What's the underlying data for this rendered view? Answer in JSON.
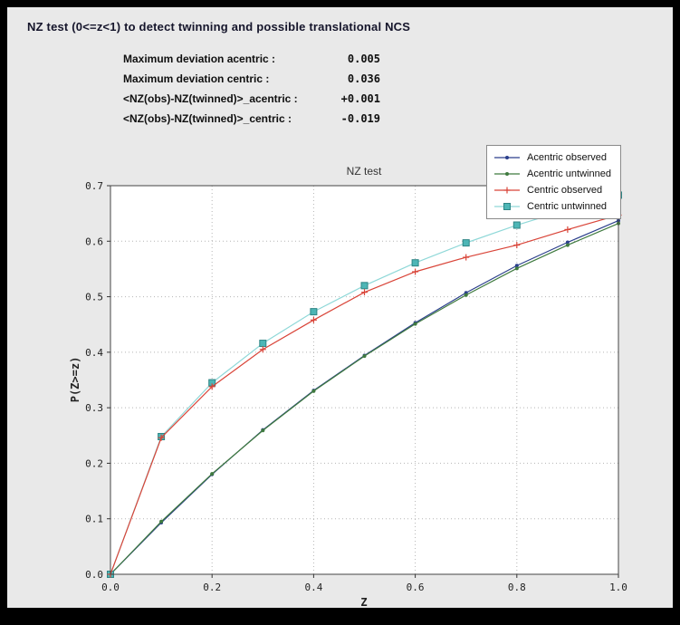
{
  "header": {
    "title": "NZ test (0<=z<1) to detect twinning and possible translational NCS"
  },
  "stats": {
    "rows": [
      {
        "label": "Maximum deviation acentric :",
        "value": "0.005"
      },
      {
        "label": "Maximum deviation centric :",
        "value": "0.036"
      },
      {
        "label": "<NZ(obs)-NZ(twinned)>_acentric :",
        "value": "+0.001"
      },
      {
        "label": "<NZ(obs)-NZ(twinned)>_centric :",
        "value": "-0.019"
      }
    ]
  },
  "chart_data": {
    "type": "line",
    "title": "NZ test",
    "xlabel": "Z",
    "ylabel": "P(Z>=z)",
    "xlim": [
      0.0,
      1.0
    ],
    "ylim": [
      0.0,
      0.7
    ],
    "xticks": [
      0.0,
      0.2,
      0.4,
      0.6,
      0.8,
      1.0
    ],
    "yticks": [
      0.0,
      0.1,
      0.2,
      0.3,
      0.4,
      0.5,
      0.6,
      0.7
    ],
    "grid": "dotted",
    "legend_position": "top-right",
    "x": [
      0.0,
      0.1,
      0.2,
      0.3,
      0.4,
      0.5,
      0.6,
      0.7,
      0.8,
      0.9,
      1.0
    ],
    "series": [
      {
        "name": "Acentric observed",
        "color": "#2b3f8c",
        "marker": "dot",
        "values": [
          0.0,
          0.093,
          0.18,
          0.26,
          0.331,
          0.394,
          0.453,
          0.507,
          0.556,
          0.598,
          0.637
        ]
      },
      {
        "name": "Acentric untwinned",
        "color": "#3f7a3f",
        "marker": "dot",
        "values": [
          0.0,
          0.095,
          0.181,
          0.259,
          0.33,
          0.393,
          0.451,
          0.503,
          0.551,
          0.593,
          0.632
        ]
      },
      {
        "name": "Centric observed",
        "color": "#d94438",
        "marker": "plus",
        "values": [
          0.0,
          0.246,
          0.338,
          0.405,
          0.458,
          0.508,
          0.545,
          0.571,
          0.593,
          0.621,
          0.647
        ]
      },
      {
        "name": "Centric untwinned",
        "color": "#8fd8d8",
        "marker": "square",
        "marker_fill": "#4db6b6",
        "marker_edge": "#2e8585",
        "values": [
          0.0,
          0.248,
          0.345,
          0.416,
          0.473,
          0.52,
          0.561,
          0.597,
          0.629,
          0.657,
          0.683
        ]
      }
    ]
  }
}
